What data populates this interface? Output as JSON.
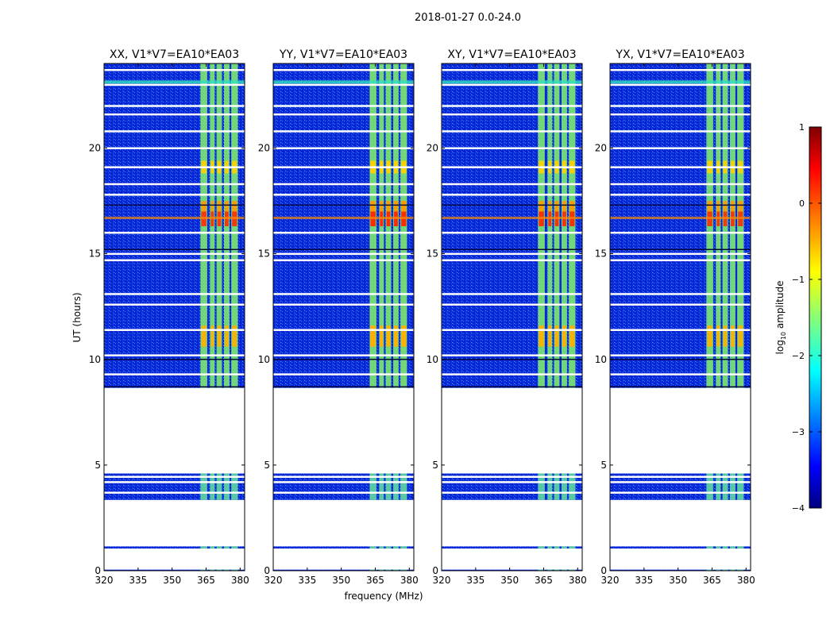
{
  "figure": {
    "suptitle": "2018-01-27 0.0-24.0",
    "xlabel": "frequency (MHz)",
    "ylabel": "UT (hours)"
  },
  "chart_data": {
    "type": "heatmap",
    "title": "2018-01-27 0.0-24.0",
    "xlabel": "frequency (MHz)",
    "ylabel": "UT (hours)",
    "xlim": [
      320,
      382
    ],
    "ylim": [
      0,
      24
    ],
    "xticks": [
      320,
      335,
      350,
      365,
      380
    ],
    "yticks": [
      0,
      5,
      10,
      15,
      20
    ],
    "panels": [
      {
        "title": "XX, V1*V7=EA10*EA03",
        "tone": 0.85,
        "high_band": 0.9,
        "rfi_line": true
      },
      {
        "title": "YY, V1*V7=EA10*EA03",
        "tone": 1.0,
        "high_band": 1.0,
        "rfi_line": true
      },
      {
        "title": "XY, V1*V7=EA10*EA03",
        "tone": 0.95,
        "high_band": 0.95,
        "rfi_line": true
      },
      {
        "title": "YX, V1*V7=EA10*EA03",
        "tone": 0.9,
        "high_band": 0.9,
        "rfi_line": true
      }
    ],
    "data_coverage_hours": [
      [
        0.0,
        0.05
      ],
      [
        1.05,
        1.15
      ],
      [
        3.35,
        4.6
      ],
      [
        8.65,
        24.0
      ]
    ],
    "colorbar": {
      "label": "log10 amplitude",
      "label_base": "log",
      "label_sub": "10",
      "label_rest": " amplitude",
      "range": [
        -4,
        1
      ],
      "ticks": [
        1,
        0,
        -1,
        -2,
        -3,
        -4
      ],
      "tick_labels": [
        "1",
        "0",
        "−1",
        "−2",
        "−3",
        "−4"
      ],
      "colormap": "jet"
    },
    "jet_stops": [
      "#000080",
      "#0000ff",
      "#00ffff",
      "#ffff00",
      "#ff0000",
      "#800000"
    ]
  }
}
